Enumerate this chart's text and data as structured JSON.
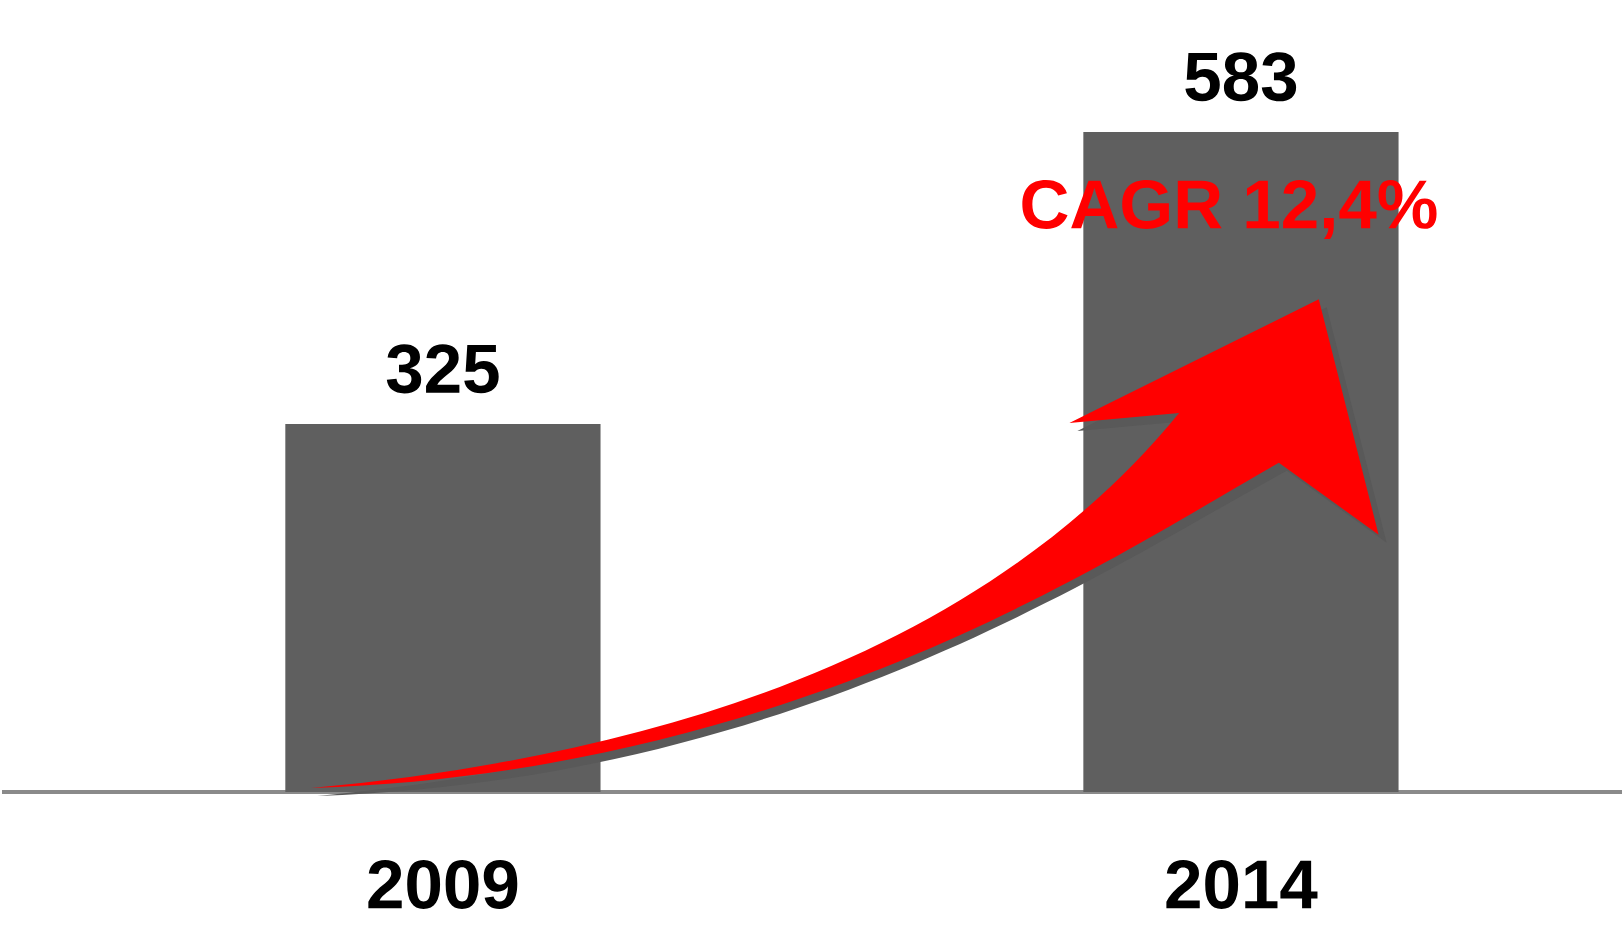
{
  "chart_data": {
    "type": "bar",
    "categories": [
      "2009",
      "2014"
    ],
    "values": [
      325,
      583
    ],
    "color": "#5f5f5f",
    "data_labels": true,
    "annotations": [
      "CAGR 12,4%"
    ]
  }
}
